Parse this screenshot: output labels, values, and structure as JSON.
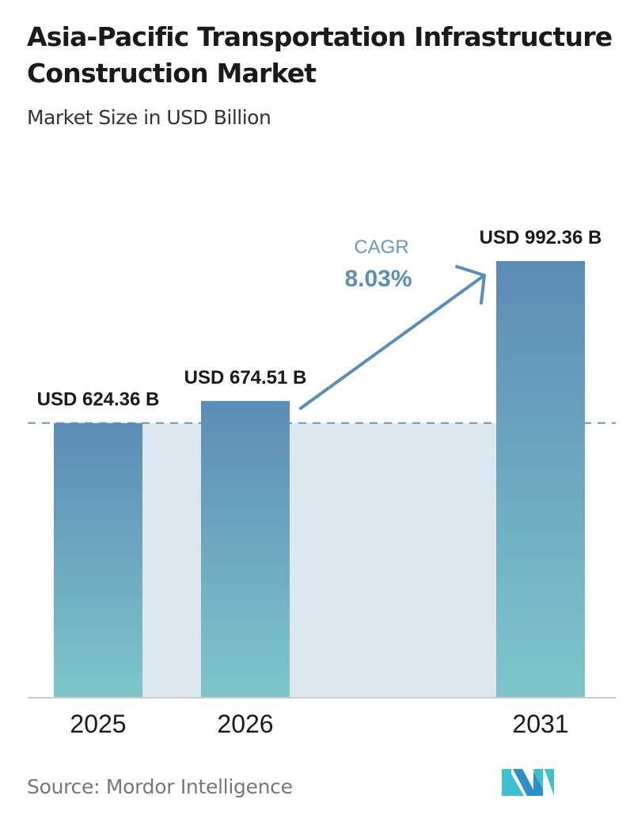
{
  "chart_data": {
    "type": "bar",
    "title": "Asia-Pacific Transportation Infrastructure Construction Market",
    "subtitle": "Market Size in USD Billion",
    "categories": [
      "2025",
      "2026",
      "2031"
    ],
    "values": [
      624.36,
      674.51,
      992.36
    ],
    "value_labels": [
      "USD 624.36 B",
      "USD 674.51 B",
      "USD 992.36 B"
    ],
    "unit": "USD Billion",
    "ylim": [
      0,
      1000
    ],
    "grid": false,
    "annotation": {
      "label": "CAGR",
      "value": "8.03%"
    },
    "source": "Source:  Mordor Intelligence"
  },
  "colors": {
    "bar_top": "#5b8cb6",
    "bar_bottom": "#7ec6ca",
    "shade": "#dde7f0",
    "accent": "#5b8db8"
  }
}
